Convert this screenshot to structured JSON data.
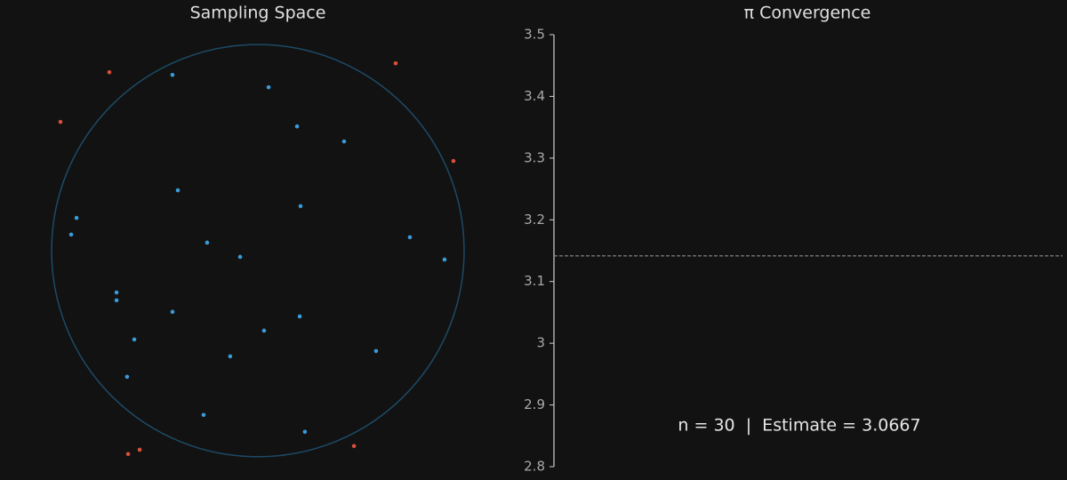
{
  "chart_data": [
    {
      "type": "scatter",
      "title": "Sampling Space",
      "xlim": [
        -1.25,
        1.25
      ],
      "ylim": [
        -1.1,
        1.1
      ],
      "circle": {
        "radius": 1,
        "color": "#1d4a66"
      },
      "series": [
        {
          "color": "#3a9ad9",
          "x": [
            -0.414,
            0.052,
            0.19,
            0.418,
            -0.388,
            0.207,
            -0.879,
            -0.905,
            0.737,
            -0.246,
            -0.086,
            0.905,
            -0.685,
            -0.685,
            -0.414,
            0.203,
            0.03,
            -0.599,
            0.573,
            -0.134,
            -0.634,
            -0.263,
            0.228
          ],
          "values": [
            0.853,
            0.793,
            0.603,
            0.53,
            0.293,
            0.216,
            0.159,
            0.078,
            0.065,
            0.039,
            -0.03,
            -0.043,
            -0.203,
            -0.241,
            -0.297,
            -0.319,
            -0.388,
            -0.431,
            -0.487,
            -0.513,
            -0.612,
            -0.797,
            -0.879
          ]
        },
        {
          "color": "#d9503a",
          "x": [
            -0.72,
            0.668,
            -0.957,
            0.948,
            0.466,
            -0.573,
            -0.629
          ],
          "values": [
            0.866,
            0.909,
            0.625,
            0.435,
            -0.948,
            -0.966,
            -0.987
          ]
        }
      ]
    },
    {
      "type": "line",
      "title": "π Convergence",
      "ylim": [
        2.8,
        3.5
      ],
      "yticks": [
        2.8,
        2.9,
        3.0,
        3.1,
        3.2,
        3.3,
        3.4,
        3.5
      ],
      "series": [],
      "reference_line": {
        "value": 3.14159,
        "color": "#9a9a9a",
        "dashed": true
      },
      "annotation": "n = 30  |  Estimate = 3.0667"
    }
  ]
}
